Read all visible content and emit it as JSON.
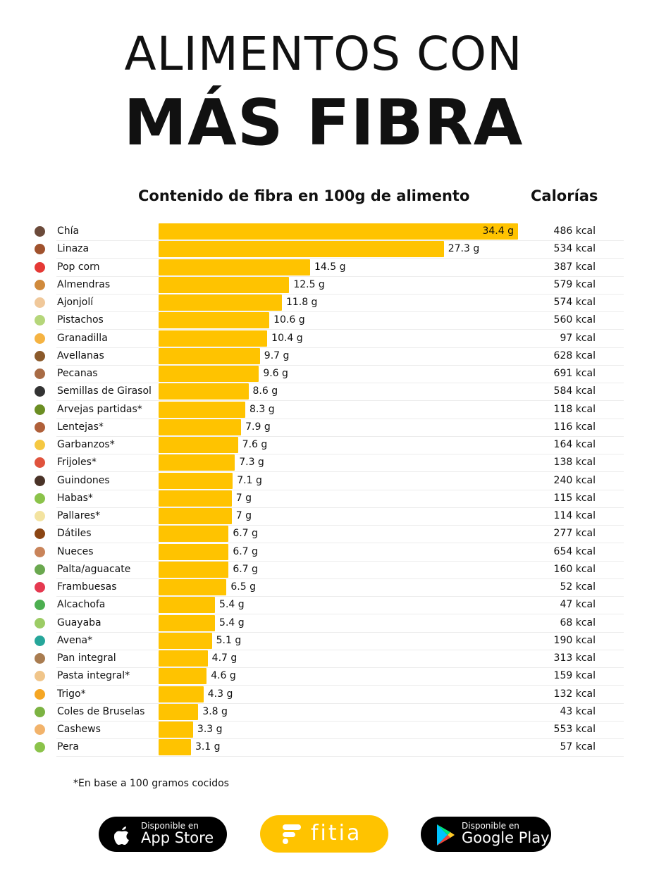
{
  "title_line1": "ALIMENTOS CON",
  "title_line2": "MÁS FIBRA",
  "chart_data": {
    "type": "bar",
    "orientation": "horizontal",
    "title": "Contenido de fibra en 100g de alimento",
    "calories_header": "Calorías",
    "unit": "g",
    "bar_color": "#FFC300",
    "categories": [
      "Chía",
      "Linaza",
      "Pop corn",
      "Almendras",
      "Ajonjolí",
      "Pistachos",
      "Granadilla",
      "Avellanas",
      "Pecanas",
      "Semillas de Girasol",
      "Arvejas partidas*",
      "Lentejas*",
      "Garbanzos*",
      "Frijoles*",
      "Guindones",
      "Habas*",
      "Pallares*",
      "Dátiles",
      "Nueces",
      "Palta/aguacate",
      "Frambuesas",
      "Alcachofa",
      "Guayaba",
      "Avena*",
      "Pan integral",
      "Pasta integral*",
      "Trigo*",
      "Coles de Bruselas",
      "Cashews",
      "Pera"
    ],
    "values": [
      34.4,
      27.3,
      14.5,
      12.5,
      11.8,
      10.6,
      10.4,
      9.7,
      9.6,
      8.6,
      8.3,
      7.9,
      7.6,
      7.3,
      7.1,
      7,
      7,
      6.7,
      6.7,
      6.7,
      6.5,
      5.4,
      5.4,
      5.1,
      4.7,
      4.6,
      4.3,
      3.8,
      3.3,
      3.1
    ],
    "value_labels": [
      "34.4 g",
      "27.3 g",
      "14.5 g",
      "12.5 g",
      "11.8 g",
      "10.6 g",
      "10.4 g",
      "9.7 g",
      "9.6 g",
      "8.6 g",
      "8.3 g",
      "7.9 g",
      "7.6 g",
      "7.3 g",
      "7.1 g",
      "7 g",
      "7 g",
      "6.7 g",
      "6.7 g",
      "6.7 g",
      "6.5 g",
      "5.4 g",
      "5.4 g",
      "5.1 g",
      "4.7 g",
      "4.6 g",
      "4.3 g",
      "3.8 g",
      "3.3 g",
      "3.1 g"
    ],
    "calories": [
      "486 kcal",
      "534 kcal",
      "387 kcal",
      "579 kcal",
      "574 kcal",
      "560 kcal",
      "97 kcal",
      "628 kcal",
      "691 kcal",
      "584 kcal",
      "118 kcal",
      "116 kcal",
      "164 kcal",
      "138 kcal",
      "240 kcal",
      "115 kcal",
      "114 kcal",
      "277 kcal",
      "654 kcal",
      "160 kcal",
      "52 kcal",
      "47 kcal",
      "68 kcal",
      "190 kcal",
      "313 kcal",
      "159 kcal",
      "132 kcal",
      "43 kcal",
      "553 kcal",
      "57 kcal"
    ],
    "icon_colors": [
      "#6b4a3a",
      "#a0522d",
      "#e53935",
      "#d08a3c",
      "#f0c89a",
      "#b5d67a",
      "#f5b342",
      "#8b5a2b",
      "#a86b45",
      "#333333",
      "#6b8e23",
      "#b0603a",
      "#f5c842",
      "#e0533d",
      "#4a3328",
      "#8bc34a",
      "#f3e3a0",
      "#8b4513",
      "#c9845a",
      "#6aa84f",
      "#e53950",
      "#4caf50",
      "#9ccc65",
      "#26a69a",
      "#a97c50",
      "#f0c58a",
      "#f5a623",
      "#7cb342",
      "#f2b36b",
      "#8bc34a"
    ]
  },
  "footnote": "*En base a 100 gramos cocidos",
  "app_store": {
    "small": "Disponible en",
    "big": "App Store"
  },
  "brand": "fitia",
  "google_play": {
    "small": "Disponible en",
    "big": "Google Play"
  }
}
